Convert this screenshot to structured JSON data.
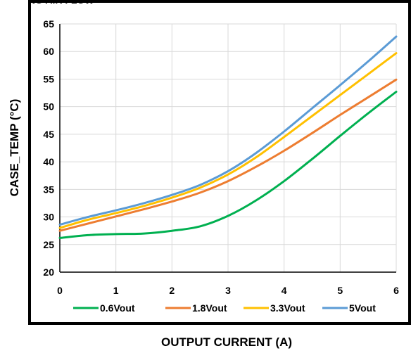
{
  "chart_data": {
    "type": "line",
    "title": "NO AIR FLOW",
    "xlabel": "OUTPUT CURRENT (A)",
    "ylabel": "CASE_TEMP (°C)",
    "xlim": [
      0,
      6
    ],
    "ylim": [
      20,
      65
    ],
    "xticks": [
      0,
      1,
      2,
      3,
      4,
      5,
      6
    ],
    "yticks": [
      20,
      25,
      30,
      35,
      40,
      45,
      50,
      55,
      60,
      65
    ],
    "grid": true,
    "legend_position": "bottom",
    "x": [
      0,
      0.5,
      1,
      1.5,
      2,
      2.5,
      3,
      3.5,
      4,
      4.5,
      5,
      5.5,
      6
    ],
    "series": [
      {
        "name": "0.6Vout",
        "color": "#00b050",
        "values": [
          26.2,
          26.7,
          26.9,
          27.0,
          27.5,
          28.3,
          30.2,
          33.0,
          36.5,
          40.5,
          44.7,
          48.8,
          52.7
        ]
      },
      {
        "name": "1.8Vout",
        "color": "#ed7d31",
        "values": [
          27.5,
          28.8,
          30.1,
          31.4,
          32.8,
          34.4,
          36.5,
          39.1,
          42.0,
          45.2,
          48.5,
          51.7,
          54.9
        ]
      },
      {
        "name": "3.3Vout",
        "color": "#ffc000",
        "values": [
          28.0,
          29.5,
          30.7,
          32.0,
          33.5,
          35.3,
          37.7,
          40.8,
          44.5,
          48.3,
          52.1,
          55.9,
          59.7
        ]
      },
      {
        "name": "5Vout",
        "color": "#5b9bd5",
        "values": [
          28.6,
          30.0,
          31.2,
          32.5,
          34.0,
          35.8,
          38.3,
          41.6,
          45.5,
          49.7,
          53.9,
          58.2,
          62.7
        ]
      }
    ]
  }
}
